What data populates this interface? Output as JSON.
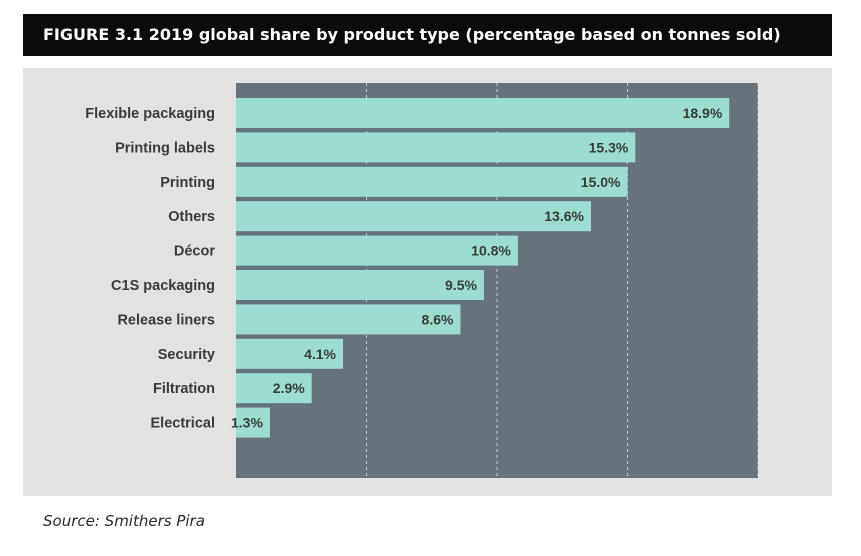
{
  "title": "FIGURE 3.1 2019 global share by product type (percentage based on tonnes sold)",
  "source": "Source: Smithers Pira",
  "chart_data": {
    "type": "bar",
    "orientation": "horizontal",
    "categories": [
      "Flexible packaging",
      "Printing labels",
      "Printing",
      "Others",
      "Décor",
      "C1S packaging",
      "Release liners",
      "Security",
      "Filtration",
      "Electrical"
    ],
    "values": [
      18.9,
      15.3,
      15.0,
      13.6,
      10.8,
      9.5,
      8.6,
      4.1,
      2.9,
      1.3
    ],
    "data_labels": [
      "18.9%",
      "15.3%",
      "15.0%",
      "13.6%",
      "10.8%",
      "9.5%",
      "8.6%",
      "4.1%",
      "2.9%",
      "1.3%"
    ],
    "xlim": [
      0,
      20
    ],
    "grid": true,
    "colors": {
      "bar": "#9bddd0",
      "plot_background": "#66737f",
      "panel_background": "#e2e2e2",
      "gridline": "#e8ecef",
      "label_text": "#3a3a3a"
    }
  }
}
